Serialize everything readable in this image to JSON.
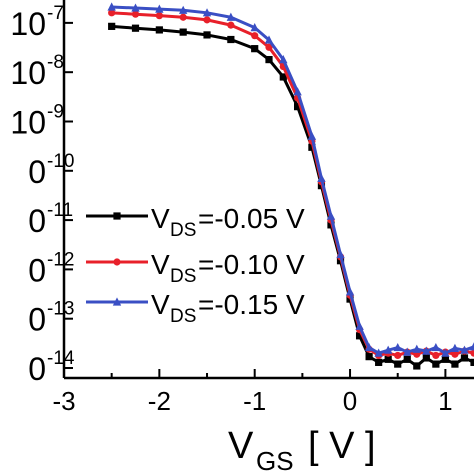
{
  "chart_data": {
    "type": "line",
    "xlabel_main": "V",
    "xlabel_sub": "GS",
    "xlabel_unit": "[ V ]",
    "y_scale": "log",
    "xlim": [
      -3,
      1.3
    ],
    "ylim": [
      1e-14,
      2.2e-07
    ],
    "grid": false,
    "legend_position": "center-left",
    "x_ticks": [
      {
        "value": -3,
        "label": "-3"
      },
      {
        "value": -2,
        "label": "-2"
      },
      {
        "value": -1,
        "label": "-1"
      },
      {
        "value": 0,
        "label": "0"
      },
      {
        "value": 1,
        "label": "1"
      }
    ],
    "y_ticks": [
      {
        "value": 1e-14,
        "base": "0",
        "exp": "-14"
      },
      {
        "value": 1e-13,
        "base": "0",
        "exp": "-13"
      },
      {
        "value": 1e-12,
        "base": "0",
        "exp": "-12"
      },
      {
        "value": 1e-11,
        "base": "0",
        "exp": "-11"
      },
      {
        "value": 1e-10,
        "base": "0",
        "exp": "-10"
      },
      {
        "value": 1e-09,
        "base": "10",
        "exp": "-9"
      },
      {
        "value": 1e-08,
        "base": "10",
        "exp": "-8"
      },
      {
        "value": 1e-07,
        "base": "10",
        "exp": "-7"
      }
    ],
    "series": [
      {
        "legend_main": "V",
        "legend_sub": "DS",
        "legend_value": "=-0.05 V",
        "color": "#000000",
        "marker": "square",
        "x": [
          -2.5,
          -2.25,
          -2.0,
          -1.75,
          -1.5,
          -1.25,
          -1.0,
          -0.85,
          -0.7,
          -0.55,
          -0.4,
          -0.3,
          -0.2,
          -0.1,
          0.0,
          0.1,
          0.2,
          0.3,
          0.4,
          0.5,
          0.6,
          0.7,
          0.8,
          0.9,
          1.0,
          1.1,
          1.2,
          1.3
        ],
        "values": [
          8.5e-08,
          7.8e-08,
          7.2e-08,
          6.5e-08,
          5.7e-08,
          4.6e-08,
          3e-08,
          1.8e-08,
          8e-09,
          2e-09,
          3e-10,
          5e-11,
          8e-12,
          1.5e-12,
          2.5e-13,
          4.5e-14,
          1.7e-14,
          1.3e-14,
          1.5e-14,
          1.2e-14,
          1.5e-14,
          1.1e-14,
          1.6e-14,
          1.2e-14,
          1.5e-14,
          1.2e-14,
          1.6e-14,
          1.3e-14
        ]
      },
      {
        "legend_main": "V",
        "legend_sub": "DS",
        "legend_value": "=-0.10 V",
        "color": "#e8202a",
        "marker": "circle",
        "x": [
          -2.5,
          -2.25,
          -2.0,
          -1.75,
          -1.5,
          -1.25,
          -1.0,
          -0.85,
          -0.7,
          -0.55,
          -0.4,
          -0.3,
          -0.2,
          -0.1,
          0.0,
          0.1,
          0.2,
          0.3,
          0.4,
          0.5,
          0.6,
          0.7,
          0.8,
          0.9,
          1.0,
          1.1,
          1.2,
          1.3
        ],
        "values": [
          1.6e-07,
          1.5e-07,
          1.4e-07,
          1.3e-07,
          1.15e-07,
          9e-08,
          5.5e-08,
          3.2e-08,
          1.3e-08,
          3e-09,
          4e-10,
          6e-11,
          1e-11,
          1.8e-12,
          3e-13,
          6e-14,
          2.4e-14,
          1.8e-14,
          2e-14,
          1.8e-14,
          2.1e-14,
          1.9e-14,
          2.2e-14,
          1.8e-14,
          2.1e-14,
          1.9e-14,
          2.2e-14,
          2e-14
        ]
      },
      {
        "legend_main": "V",
        "legend_sub": "DS",
        "legend_value": "=-0.15 V",
        "color": "#3a4fc4",
        "marker": "triangle",
        "x": [
          -2.5,
          -2.25,
          -2.0,
          -1.75,
          -1.5,
          -1.25,
          -1.0,
          -0.85,
          -0.7,
          -0.55,
          -0.4,
          -0.3,
          -0.2,
          -0.1,
          0.0,
          0.1,
          0.2,
          0.3,
          0.4,
          0.5,
          0.6,
          0.7,
          0.8,
          0.9,
          1.0,
          1.1,
          1.2,
          1.3
        ],
        "values": [
          2.1e-07,
          2e-07,
          1.9e-07,
          1.8e-07,
          1.6e-07,
          1.3e-07,
          8e-08,
          4.5e-08,
          1.8e-08,
          4e-09,
          5e-10,
          7e-11,
          1.2e-11,
          2e-12,
          3.5e-13,
          7e-14,
          2.6e-14,
          2e-14,
          2.3e-14,
          2.6e-14,
          2.1e-14,
          2.4e-14,
          2.2e-14,
          2.6e-14,
          2e-14,
          2.5e-14,
          2.3e-14,
          2.7e-14
        ]
      }
    ]
  }
}
